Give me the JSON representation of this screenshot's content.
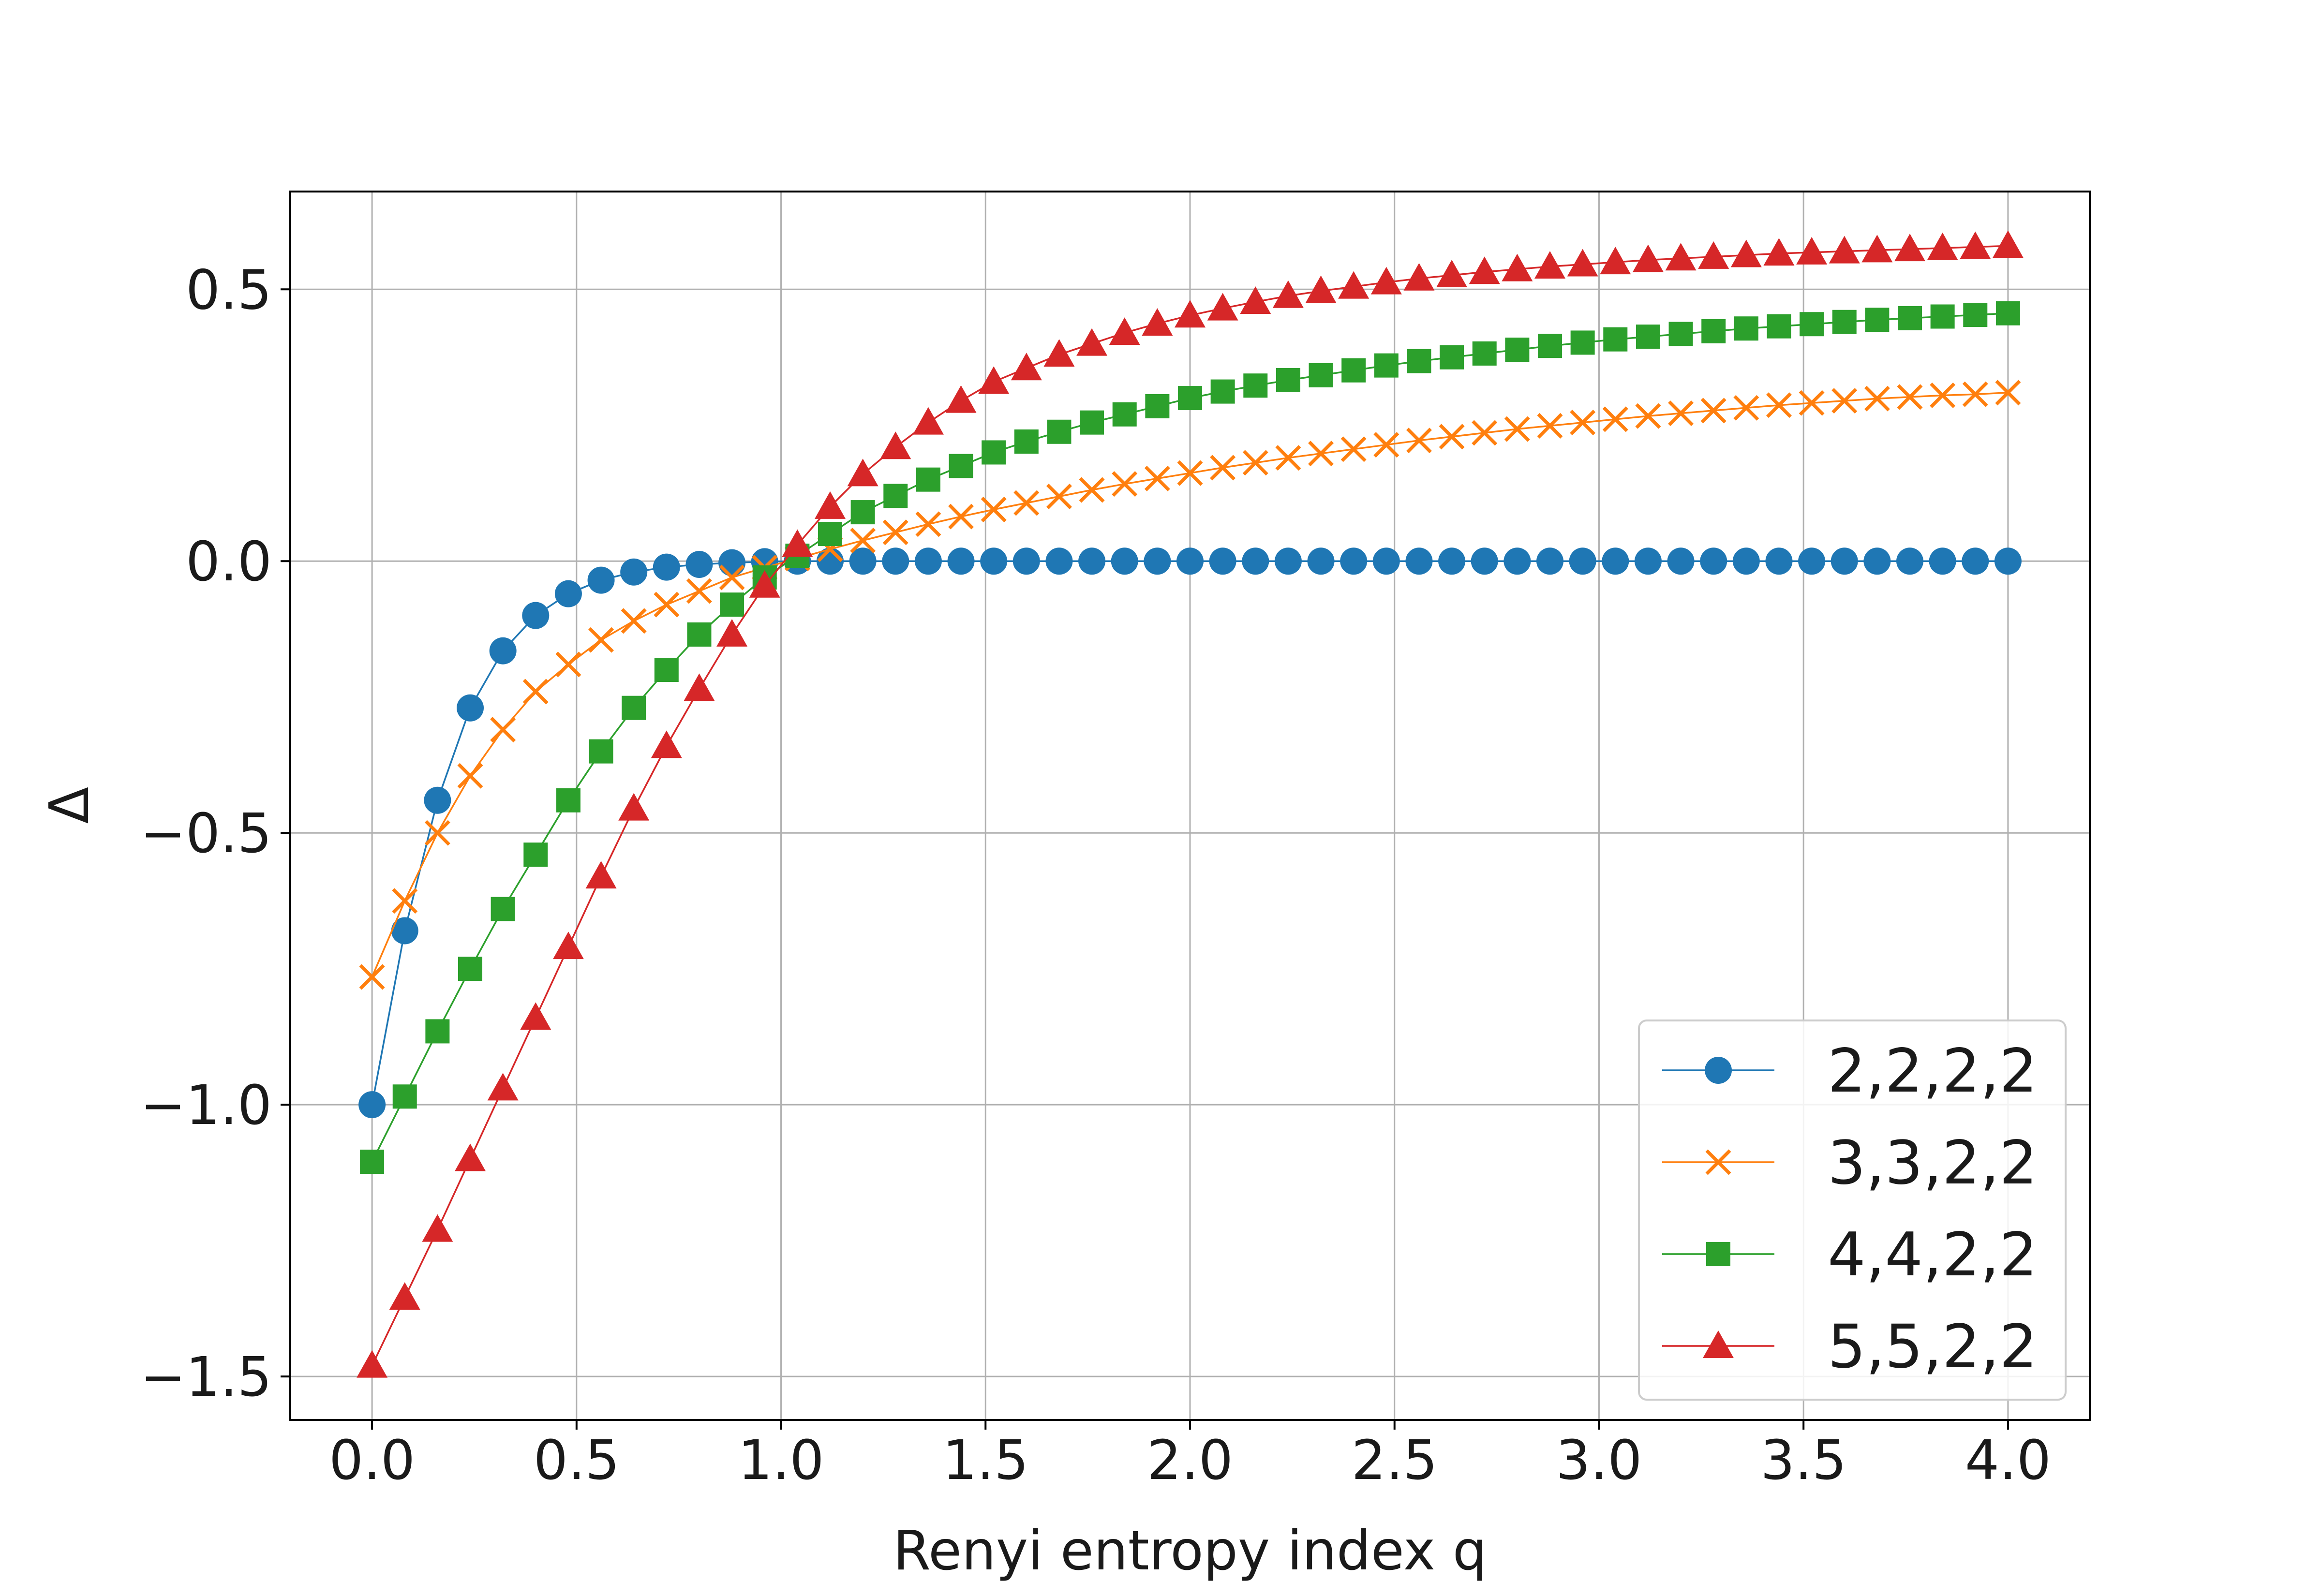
{
  "chart_data": {
    "type": "line",
    "title": "",
    "xlabel": "Renyi entropy index q",
    "ylabel": "Δ",
    "xlim": [
      -0.2,
      4.2
    ],
    "ylim": [
      -1.58,
      0.68
    ],
    "xticks": [
      0.0,
      0.5,
      1.0,
      1.5,
      2.0,
      2.5,
      3.0,
      3.5,
      4.0
    ],
    "xtick_labels": [
      "0.0",
      "0.5",
      "1.0",
      "1.5",
      "2.0",
      "2.5",
      "3.0",
      "3.5",
      "4.0"
    ],
    "yticks": [
      -1.5,
      -1.0,
      -0.5,
      0.0,
      0.5
    ],
    "ytick_labels": [
      "−1.5",
      "−1.0",
      "−0.5",
      "0.0",
      "0.5"
    ],
    "grid": true,
    "legend_position": "lower-right",
    "x": [
      0.0,
      0.08,
      0.16,
      0.24,
      0.32,
      0.4,
      0.48,
      0.56,
      0.64,
      0.72,
      0.8,
      0.88,
      0.96,
      1.04,
      1.12,
      1.2,
      1.28,
      1.36,
      1.44,
      1.52,
      1.6,
      1.68,
      1.76,
      1.84,
      1.92,
      2.0,
      2.08,
      2.16,
      2.24,
      2.32,
      2.4,
      2.48,
      2.56,
      2.64,
      2.72,
      2.8,
      2.88,
      2.96,
      3.04,
      3.12,
      3.2,
      3.28,
      3.36,
      3.44,
      3.52,
      3.6,
      3.68,
      3.76,
      3.84,
      3.92,
      4.0
    ],
    "series": [
      {
        "name": "2,2,2,2",
        "color": "#1f77b4",
        "marker": "circle",
        "values": [
          -1.0,
          -0.68,
          -0.44,
          -0.27,
          -0.165,
          -0.1,
          -0.06,
          -0.035,
          -0.02,
          -0.011,
          -0.006,
          -0.003,
          -0.001,
          0.0,
          0.0,
          0.0,
          0.0,
          0.0,
          0.0,
          0.0,
          0.0,
          0.0,
          0.0,
          0.0,
          0.0,
          0.0,
          0.0,
          0.0,
          0.0,
          0.0,
          0.0,
          0.0,
          0.0,
          0.0,
          0.0,
          0.0,
          0.0,
          0.0,
          0.0,
          0.0,
          0.0,
          0.0,
          0.0,
          0.0,
          0.0,
          0.0,
          0.0,
          0.0,
          0.0,
          0.0,
          0.0
        ]
      },
      {
        "name": "3,3,2,2",
        "color": "#ff7f0e",
        "marker": "x",
        "values": [
          -0.765,
          -0.625,
          -0.5,
          -0.395,
          -0.31,
          -0.24,
          -0.19,
          -0.145,
          -0.11,
          -0.08,
          -0.055,
          -0.03,
          -0.012,
          0.005,
          0.022,
          0.038,
          0.053,
          0.068,
          0.082,
          0.095,
          0.107,
          0.119,
          0.131,
          0.142,
          0.152,
          0.162,
          0.172,
          0.181,
          0.19,
          0.198,
          0.206,
          0.214,
          0.222,
          0.229,
          0.236,
          0.243,
          0.249,
          0.255,
          0.261,
          0.267,
          0.272,
          0.277,
          0.282,
          0.287,
          0.291,
          0.295,
          0.299,
          0.302,
          0.305,
          0.307,
          0.31
        ]
      },
      {
        "name": "4,4,2,2",
        "color": "#2ca02c",
        "marker": "square",
        "values": [
          -1.105,
          -0.985,
          -0.865,
          -0.75,
          -0.64,
          -0.54,
          -0.44,
          -0.35,
          -0.27,
          -0.2,
          -0.135,
          -0.08,
          -0.03,
          0.01,
          0.05,
          0.09,
          0.12,
          0.15,
          0.175,
          0.2,
          0.22,
          0.238,
          0.255,
          0.27,
          0.285,
          0.3,
          0.312,
          0.323,
          0.333,
          0.342,
          0.351,
          0.36,
          0.368,
          0.375,
          0.382,
          0.389,
          0.396,
          0.402,
          0.408,
          0.413,
          0.418,
          0.423,
          0.428,
          0.432,
          0.436,
          0.44,
          0.444,
          0.447,
          0.45,
          0.453,
          0.456
        ]
      },
      {
        "name": "5,5,2,2",
        "color": "#d62728",
        "marker": "triangle",
        "values": [
          -1.48,
          -1.355,
          -1.23,
          -1.1,
          -0.97,
          -0.84,
          -0.71,
          -0.58,
          -0.455,
          -0.34,
          -0.235,
          -0.135,
          -0.045,
          0.03,
          0.1,
          0.16,
          0.21,
          0.255,
          0.295,
          0.33,
          0.355,
          0.38,
          0.4,
          0.42,
          0.437,
          0.452,
          0.465,
          0.477,
          0.488,
          0.497,
          0.505,
          0.513,
          0.52,
          0.526,
          0.532,
          0.537,
          0.542,
          0.546,
          0.55,
          0.554,
          0.557,
          0.56,
          0.563,
          0.566,
          0.568,
          0.57,
          0.572,
          0.574,
          0.576,
          0.578,
          0.58
        ]
      }
    ]
  }
}
